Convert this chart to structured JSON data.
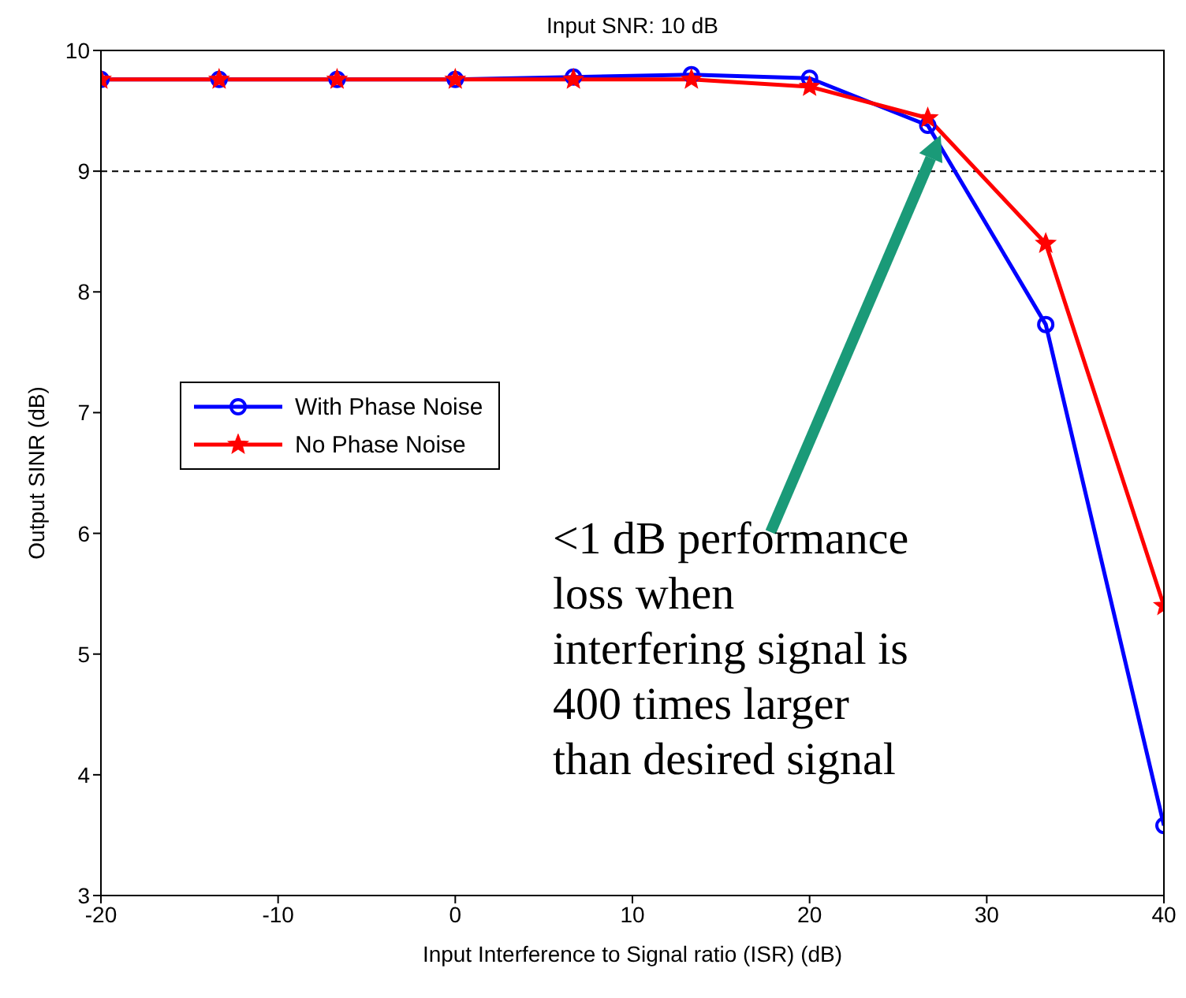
{
  "chart_data": {
    "type": "line",
    "title": "Input SNR: 10 dB",
    "xlabel": "Input Interference to Signal ratio (ISR) (dB)",
    "ylabel": "Output SINR (dB)",
    "x": [
      -20,
      -13.33,
      -6.67,
      0,
      6.67,
      13.33,
      20,
      26.67,
      33.33,
      40
    ],
    "series": [
      {
        "name": "With Phase Noise",
        "color": "#0000ff",
        "marker": "circle",
        "values": [
          9.76,
          9.76,
          9.76,
          9.76,
          9.78,
          9.8,
          9.77,
          9.38,
          7.73,
          3.58
        ]
      },
      {
        "name": "No Phase Noise",
        "color": "#ff0000",
        "marker": "star",
        "values": [
          9.76,
          9.76,
          9.76,
          9.76,
          9.76,
          9.76,
          9.7,
          9.44,
          8.4,
          5.4
        ]
      }
    ],
    "xlim": [
      -20,
      40
    ],
    "xticks": [
      -20,
      -10,
      0,
      10,
      20,
      30,
      40
    ],
    "ylim": [
      3,
      10
    ],
    "yticks": [
      3,
      4,
      5,
      6,
      7,
      8,
      9,
      10
    ],
    "ref_lines": [
      {
        "axis": "y",
        "value": 9,
        "color": "#000000",
        "line_style": "dashed"
      }
    ],
    "annotations": [
      "<1 dB performance\nloss when\ninterfering signal is\n400 times larger\nthan desired signal"
    ],
    "grid": false,
    "legend": "left",
    "line_style": "solid"
  }
}
